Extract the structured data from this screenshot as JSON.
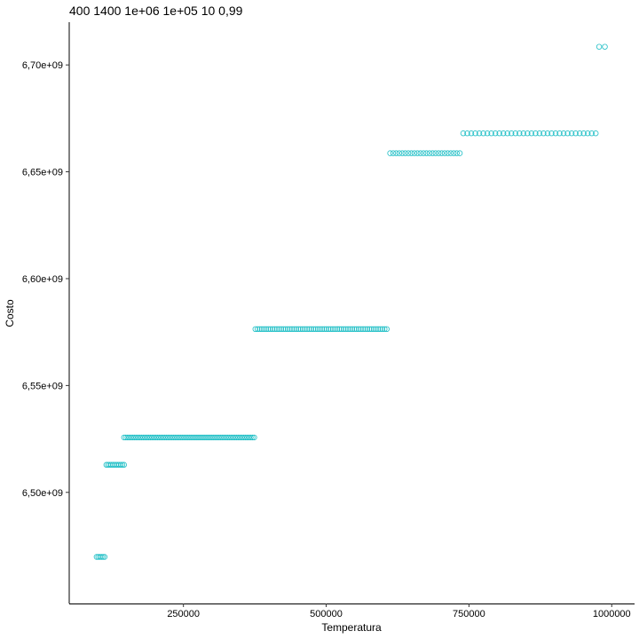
{
  "chart_data": {
    "type": "scatter",
    "title": "400 1400 1e+06 1e+05 10 0,99",
    "xlabel": "Temperatura",
    "ylabel": "Costo",
    "xlim": [
      50000,
      1040000
    ],
    "ylim": [
      6448000000,
      6720000000
    ],
    "x_ticks": [
      {
        "value": 250000,
        "label": "250000"
      },
      {
        "value": 500000,
        "label": "500000"
      },
      {
        "value": 750000,
        "label": "750000"
      },
      {
        "value": 1000000,
        "label": "1000000"
      }
    ],
    "y_ticks": [
      {
        "value": 6500000000,
        "label": "6,50e+09"
      },
      {
        "value": 6550000000,
        "label": "6,55e+09"
      },
      {
        "value": 6600000000,
        "label": "6,60e+09"
      },
      {
        "value": 6650000000,
        "label": "6,65e+09"
      },
      {
        "value": 6700000000,
        "label": "6,70e+09"
      }
    ],
    "grid": false,
    "legend": "none",
    "point_color": "#20BFC6",
    "clusters": [
      {
        "y": 6469800000,
        "x_start": 98000,
        "x_end": 112000,
        "count": 6
      },
      {
        "y": 6512900000,
        "x_start": 115000,
        "x_end": 146000,
        "count": 12
      },
      {
        "y": 6525700000,
        "x_start": 146000,
        "x_end": 374000,
        "count": 75
      },
      {
        "y": 6576400000,
        "x_start": 376000,
        "x_end": 606000,
        "count": 62
      },
      {
        "y": 6658700000,
        "x_start": 612000,
        "x_end": 734000,
        "count": 24
      },
      {
        "y": 6668000000,
        "x_start": 740000,
        "x_end": 972000,
        "count": 34
      },
      {
        "y": 6708500000,
        "x_start": 978000,
        "x_end": 988000,
        "count": 2
      }
    ]
  }
}
